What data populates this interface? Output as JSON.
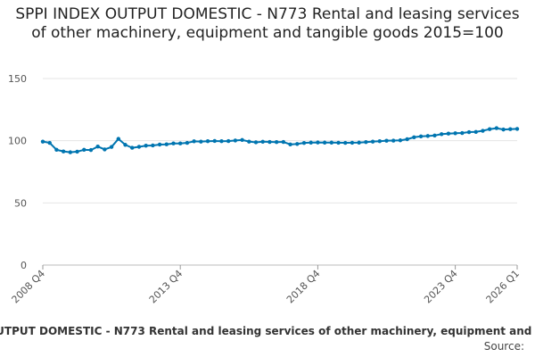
{
  "chart_data": {
    "type": "line",
    "title": "SPPI INDEX OUTPUT DOMESTIC - N773 Rental and leasing services of other machinery, equipment and tangible goods 2015=100",
    "xlabel": "",
    "ylabel": "",
    "ylim": [
      0,
      150
    ],
    "yticks": [
      0,
      50,
      100,
      150
    ],
    "grid": true,
    "x_tick_labels": [
      "2008 Q4",
      "2013 Q4",
      "2018 Q4",
      "2023 Q4",
      "2026 Q1"
    ],
    "x": [
      "2008 Q4",
      "2009 Q1",
      "2009 Q2",
      "2009 Q3",
      "2009 Q4",
      "2010 Q1",
      "2010 Q2",
      "2010 Q3",
      "2010 Q4",
      "2011 Q1",
      "2011 Q2",
      "2011 Q3",
      "2011 Q4",
      "2012 Q1",
      "2012 Q2",
      "2012 Q3",
      "2012 Q4",
      "2013 Q1",
      "2013 Q2",
      "2013 Q3",
      "2013 Q4",
      "2014 Q1",
      "2014 Q2",
      "2014 Q3",
      "2014 Q4",
      "2015 Q1",
      "2015 Q2",
      "2015 Q3",
      "2015 Q4",
      "2016 Q1",
      "2016 Q2",
      "2016 Q3",
      "2016 Q4",
      "2017 Q1",
      "2017 Q2",
      "2017 Q3",
      "2017 Q4",
      "2018 Q1",
      "2018 Q2",
      "2018 Q3",
      "2018 Q4",
      "2019 Q1",
      "2019 Q2",
      "2019 Q3",
      "2019 Q4",
      "2020 Q1",
      "2020 Q2",
      "2020 Q3",
      "2020 Q4",
      "2021 Q1",
      "2021 Q2",
      "2021 Q3",
      "2021 Q4",
      "2022 Q1",
      "2022 Q2",
      "2022 Q3",
      "2022 Q4",
      "2023 Q1",
      "2023 Q2",
      "2023 Q3",
      "2023 Q4",
      "2024 Q1",
      "2024 Q2",
      "2024 Q3",
      "2024 Q4",
      "2025 Q1",
      "2025 Q2",
      "2025 Q3",
      "2025 Q4",
      "2026 Q1"
    ],
    "series": [
      {
        "name": "SPPI INDEX OUTPUT DOMESTIC - N773 Rental and leasing services of other machinery, equipment and tangible goods 2015=100",
        "color": "#0075b0",
        "values": [
          99.3,
          98.3,
          92.7,
          91.4,
          90.7,
          91.2,
          92.7,
          92.5,
          95.3,
          93.0,
          95.0,
          101.5,
          96.7,
          94.3,
          95.1,
          96.0,
          96.2,
          96.9,
          97.1,
          97.8,
          97.8,
          98.3,
          99.5,
          99.3,
          99.6,
          99.8,
          99.6,
          99.7,
          100.2,
          100.6,
          99.3,
          98.7,
          99.2,
          99.0,
          98.9,
          99.0,
          97.0,
          97.4,
          98.2,
          98.5,
          98.6,
          98.5,
          98.5,
          98.4,
          98.3,
          98.4,
          98.5,
          98.9,
          99.3,
          99.6,
          100.0,
          100.1,
          100.3,
          101.2,
          102.8,
          103.5,
          103.8,
          104.2,
          105.3,
          105.7,
          106.0,
          106.2,
          106.9,
          107.1,
          108.0,
          109.3,
          110.1,
          109.0,
          109.3,
          109.5
        ]
      }
    ]
  },
  "source_label": "Source:"
}
